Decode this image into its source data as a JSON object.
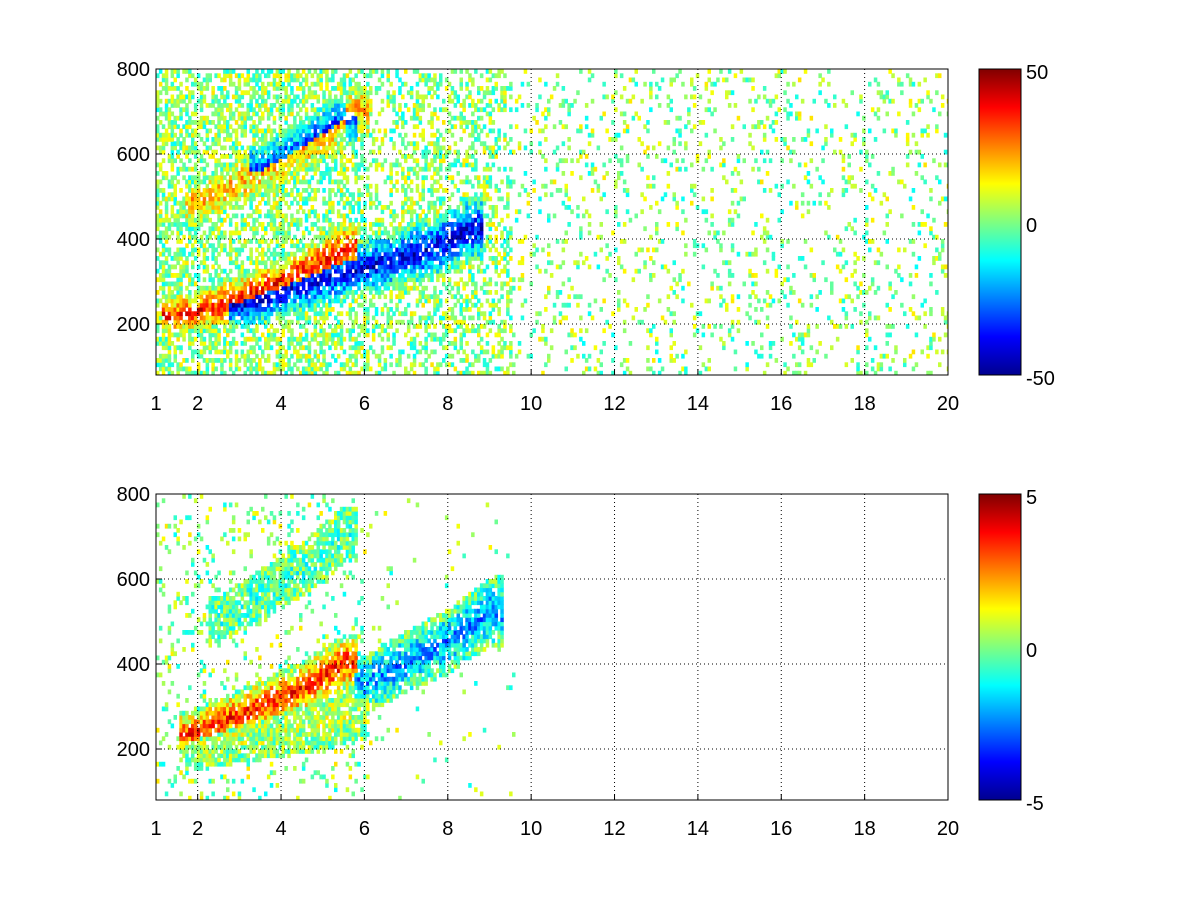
{
  "chart_data": [
    {
      "type": "heatmap",
      "title": "",
      "xlabel": "",
      "ylabel": "",
      "x_range": [
        1,
        20
      ],
      "y_range": [
        80,
        800
      ],
      "x_ticks": [
        "1",
        "2",
        "4",
        "6",
        "8",
        "10",
        "12",
        "14",
        "16",
        "18",
        "20"
      ],
      "y_ticks": [
        "200",
        "400",
        "600",
        "800"
      ],
      "grid": true,
      "colormap": "jet",
      "color_range": [
        -50,
        50
      ],
      "colorbar_ticks": [
        "50",
        "0",
        "-50"
      ],
      "features": [
        {
          "description_value": "lower ridge (positive)",
          "x": [
            1.4,
            2.5,
            3.5,
            4.5,
            5.5
          ],
          "y": [
            215,
            240,
            275,
            320,
            370
          ],
          "value": 35
        },
        {
          "description_value": "lower ridge (negative)",
          "x": [
            3.0,
            4.0,
            5.0,
            6.0,
            7.5,
            8.5
          ],
          "y": [
            240,
            270,
            300,
            330,
            370,
            420
          ],
          "value": -40
        },
        {
          "description_value": "upper band",
          "x": [
            2.0,
            3.0,
            4.0,
            5.0,
            5.8
          ],
          "y": [
            480,
            530,
            580,
            640,
            700
          ],
          "value": 20
        },
        {
          "description_value": "upper band (negative)",
          "x": [
            3.5,
            4.5,
            5.5
          ],
          "y": [
            560,
            620,
            680
          ],
          "value": -30
        }
      ]
    },
    {
      "type": "heatmap",
      "title": "",
      "xlabel": "",
      "ylabel": "",
      "x_range": [
        1,
        20
      ],
      "y_range": [
        80,
        800
      ],
      "x_ticks": [
        "1",
        "2",
        "4",
        "6",
        "8",
        "10",
        "12",
        "14",
        "16",
        "18",
        "20"
      ],
      "y_ticks": [
        "200",
        "400",
        "600",
        "800"
      ],
      "grid": true,
      "colormap": "jet",
      "color_range": [
        -5,
        5
      ],
      "colorbar_ticks": [
        "5",
        "0",
        "-5"
      ],
      "features": [
        {
          "description_value": "lower ridge (positive)",
          "x": [
            1.8,
            2.5,
            3.5,
            4.5,
            5.5
          ],
          "y": [
            230,
            260,
            300,
            340,
            400
          ],
          "value": 3.5
        },
        {
          "description_value": "lower band (near zero)",
          "x": [
            2.0,
            3.0,
            4.0,
            5.0,
            5.8
          ],
          "y": [
            200,
            220,
            240,
            260,
            280
          ],
          "value": 0.5
        },
        {
          "description_value": "upper band",
          "x": [
            2.5,
            3.5,
            4.5,
            5.5
          ],
          "y": [
            500,
            560,
            620,
            700
          ],
          "value": -0.5
        },
        {
          "description_value": "right cluster (negative)",
          "x": [
            6.0,
            7.0,
            8.0,
            9.0
          ],
          "y": [
            350,
            400,
            450,
            520
          ],
          "value": -2.5
        }
      ]
    }
  ]
}
